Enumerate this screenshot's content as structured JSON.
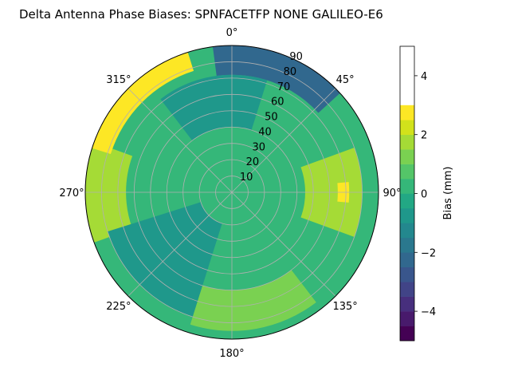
{
  "chart_data": {
    "type": "polar-contour",
    "title": "Delta Antenna Phase Biases: SPNFACETFP      NONE GALILEO-E6",
    "angular_ticks": [
      "0°",
      "45°",
      "90°",
      "135°",
      "180°",
      "225°",
      "270°",
      "315°"
    ],
    "radial_ticks": [
      "10",
      "20",
      "30",
      "40",
      "50",
      "60",
      "70",
      "80",
      "90"
    ],
    "radial_range": [
      0,
      90
    ],
    "grid": true,
    "colorbar": {
      "label": "Bias (mm)",
      "ticks": [
        "−4",
        "−2",
        "0",
        "2",
        "4"
      ],
      "range": [
        -5,
        5
      ],
      "levels": [
        -5,
        -4.5,
        -4,
        -3.5,
        -3,
        -2.5,
        -2,
        -1.5,
        -1,
        -0.5,
        0,
        0.5,
        1,
        1.5,
        2,
        2.5,
        3,
        3.5,
        4,
        4.5,
        5
      ],
      "colors": [
        "#440154",
        "#481a6c",
        "#472f7d",
        "#414487",
        "#39568c",
        "#31688e",
        "#2a788e",
        "#23888e",
        "#1f988b",
        "#22a884",
        "#35b779",
        "#54c568",
        "#7ad151",
        "#a5db36",
        "#d2e21b",
        "#fde725"
      ]
    },
    "regions": [
      {
        "name": "background",
        "azimuth_deg": [
          0,
          360
        ],
        "elevation_deg": [
          0,
          90
        ],
        "bias_mm": 0.3
      },
      {
        "name": "north-high-negative",
        "azimuth_center_deg": 20,
        "elevation_deg": [
          72,
          90
        ],
        "bias_mm": -2.5
      },
      {
        "name": "north-inner-ring",
        "azimuth_center_deg": 350,
        "elevation_deg": [
          40,
          72
        ],
        "bias_mm": -1.0
      },
      {
        "name": "east-positive-lobe",
        "azimuth_center_deg": 90,
        "elevation_deg": [
          45,
          80
        ],
        "bias_mm": 1.6
      },
      {
        "name": "east-peak",
        "azimuth_center_deg": 90,
        "elevation_deg": [
          65,
          72
        ],
        "bias_mm": 2.6
      },
      {
        "name": "west-positive-lobe",
        "azimuth_center_deg": 270,
        "elevation_deg": [
          65,
          90
        ],
        "bias_mm": 1.7
      },
      {
        "name": "northwest-high-positive",
        "azimuth_center_deg": 315,
        "elevation_deg": [
          78,
          90
        ],
        "bias_mm": 3.3
      },
      {
        "name": "southwest-negative",
        "azimuth_center_deg": 225,
        "elevation_deg": [
          20,
          80
        ],
        "bias_mm": -0.9
      },
      {
        "name": "south-positive",
        "azimuth_center_deg": 170,
        "elevation_deg": [
          60,
          85
        ],
        "bias_mm": 1.2
      }
    ]
  }
}
